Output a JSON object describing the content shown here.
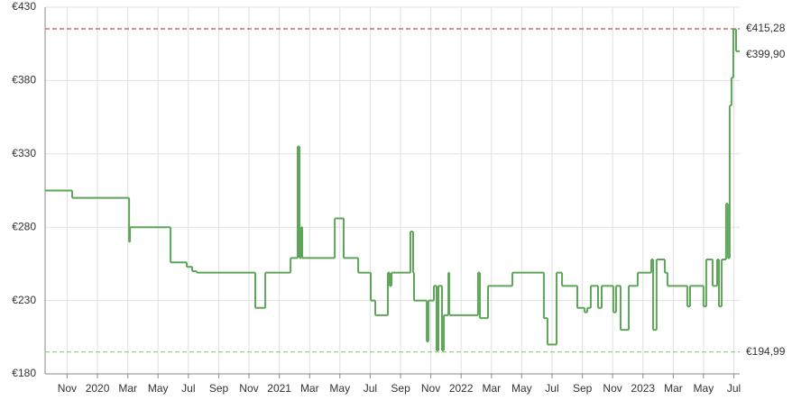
{
  "chart_data": {
    "type": "step",
    "color": "#5ea55a",
    "xlim": [
      2019.712,
      2023.532
    ],
    "ylim": [
      180,
      430
    ],
    "yticks": [
      {
        "value": 180,
        "label": "€180"
      },
      {
        "value": 230,
        "label": "€230"
      },
      {
        "value": 280,
        "label": "€280"
      },
      {
        "value": 330,
        "label": "€330"
      },
      {
        "value": 380,
        "label": "€380"
      },
      {
        "value": 430,
        "label": "€430"
      }
    ],
    "xticks": [
      {
        "value": 2019.833,
        "label": "Nov"
      },
      2020,
      {
        "value": 2020.167,
        "label": "Mar"
      },
      {
        "value": 2020.333,
        "label": "May"
      },
      {
        "value": 2020.5,
        "label": "Jul"
      },
      {
        "value": 2020.667,
        "label": "Sep"
      },
      {
        "value": 2020.833,
        "label": "Nov"
      },
      2021,
      {
        "value": 2021.167,
        "label": "Mar"
      },
      {
        "value": 2021.333,
        "label": "May"
      },
      {
        "value": 2021.5,
        "label": "Jul"
      },
      {
        "value": 2021.667,
        "label": "Sep"
      },
      {
        "value": 2021.833,
        "label": "Nov"
      },
      2022,
      {
        "value": 2022.167,
        "label": "Mar"
      },
      {
        "value": 2022.333,
        "label": "May"
      },
      {
        "value": 2022.5,
        "label": "Jul"
      },
      {
        "value": 2022.667,
        "label": "Sep"
      },
      {
        "value": 2022.833,
        "label": "Nov"
      },
      2023,
      {
        "value": 2023.167,
        "label": "Mar"
      },
      {
        "value": 2023.333,
        "label": "May"
      },
      {
        "value": 2023.5,
        "label": "Jul"
      }
    ],
    "grid": true,
    "x": [
      2019.712,
      2019.861,
      2020.174,
      2020.179,
      2020.402,
      2020.491,
      2020.521,
      2020.546,
      2020.868,
      2020.923,
      2021.062,
      2021.101,
      2021.111,
      2021.121,
      2021.126,
      2021.305,
      2021.354,
      2021.434,
      2021.503,
      2021.528,
      2021.597,
      2021.607,
      2021.617,
      2021.721,
      2021.736,
      2021.741,
      2021.811,
      2021.82,
      2021.85,
      2021.865,
      2021.875,
      2021.895,
      2021.905,
      2021.93,
      2021.935,
      2022.093,
      2022.103,
      2022.148,
      2022.282,
      2022.455,
      2022.475,
      2022.525,
      2022.555,
      2022.639,
      2022.679,
      2022.694,
      2022.713,
      2022.753,
      2022.773,
      2022.837,
      2022.852,
      2022.877,
      2022.922,
      2022.971,
      2023.046,
      2023.056,
      2023.075,
      2023.12,
      2023.135,
      2023.244,
      2023.259,
      2023.333,
      2023.348,
      2023.383,
      2023.408,
      2023.418,
      2023.433,
      2023.457,
      2023.467,
      2023.477,
      2023.487,
      2023.497,
      2023.512
    ],
    "values": [
      305,
      300,
      270,
      280,
      256,
      253,
      250,
      249,
      225,
      249,
      259,
      335,
      259,
      280,
      259,
      286,
      259,
      249,
      230,
      220,
      249,
      240,
      249,
      277,
      249,
      230,
      202,
      230,
      240,
      196,
      240,
      196,
      220,
      249,
      220,
      249,
      218,
      240,
      249,
      218,
      200,
      249,
      240,
      225,
      222,
      225,
      240,
      225,
      240,
      222,
      240,
      210,
      240,
      249,
      258,
      210,
      258,
      249,
      240,
      226,
      240,
      226,
      258,
      240,
      258,
      226,
      258,
      296,
      259,
      363,
      382,
      415,
      400
    ],
    "reference_lines": [
      {
        "value": 415.28,
        "label": "€415,28",
        "color": "#c0504d"
      },
      {
        "value": 194.99,
        "label": "€194,99",
        "color": "#8fd68a"
      }
    ],
    "current": {
      "value": 399.9,
      "label": "€399,90",
      "color": "#5ea55a"
    }
  }
}
